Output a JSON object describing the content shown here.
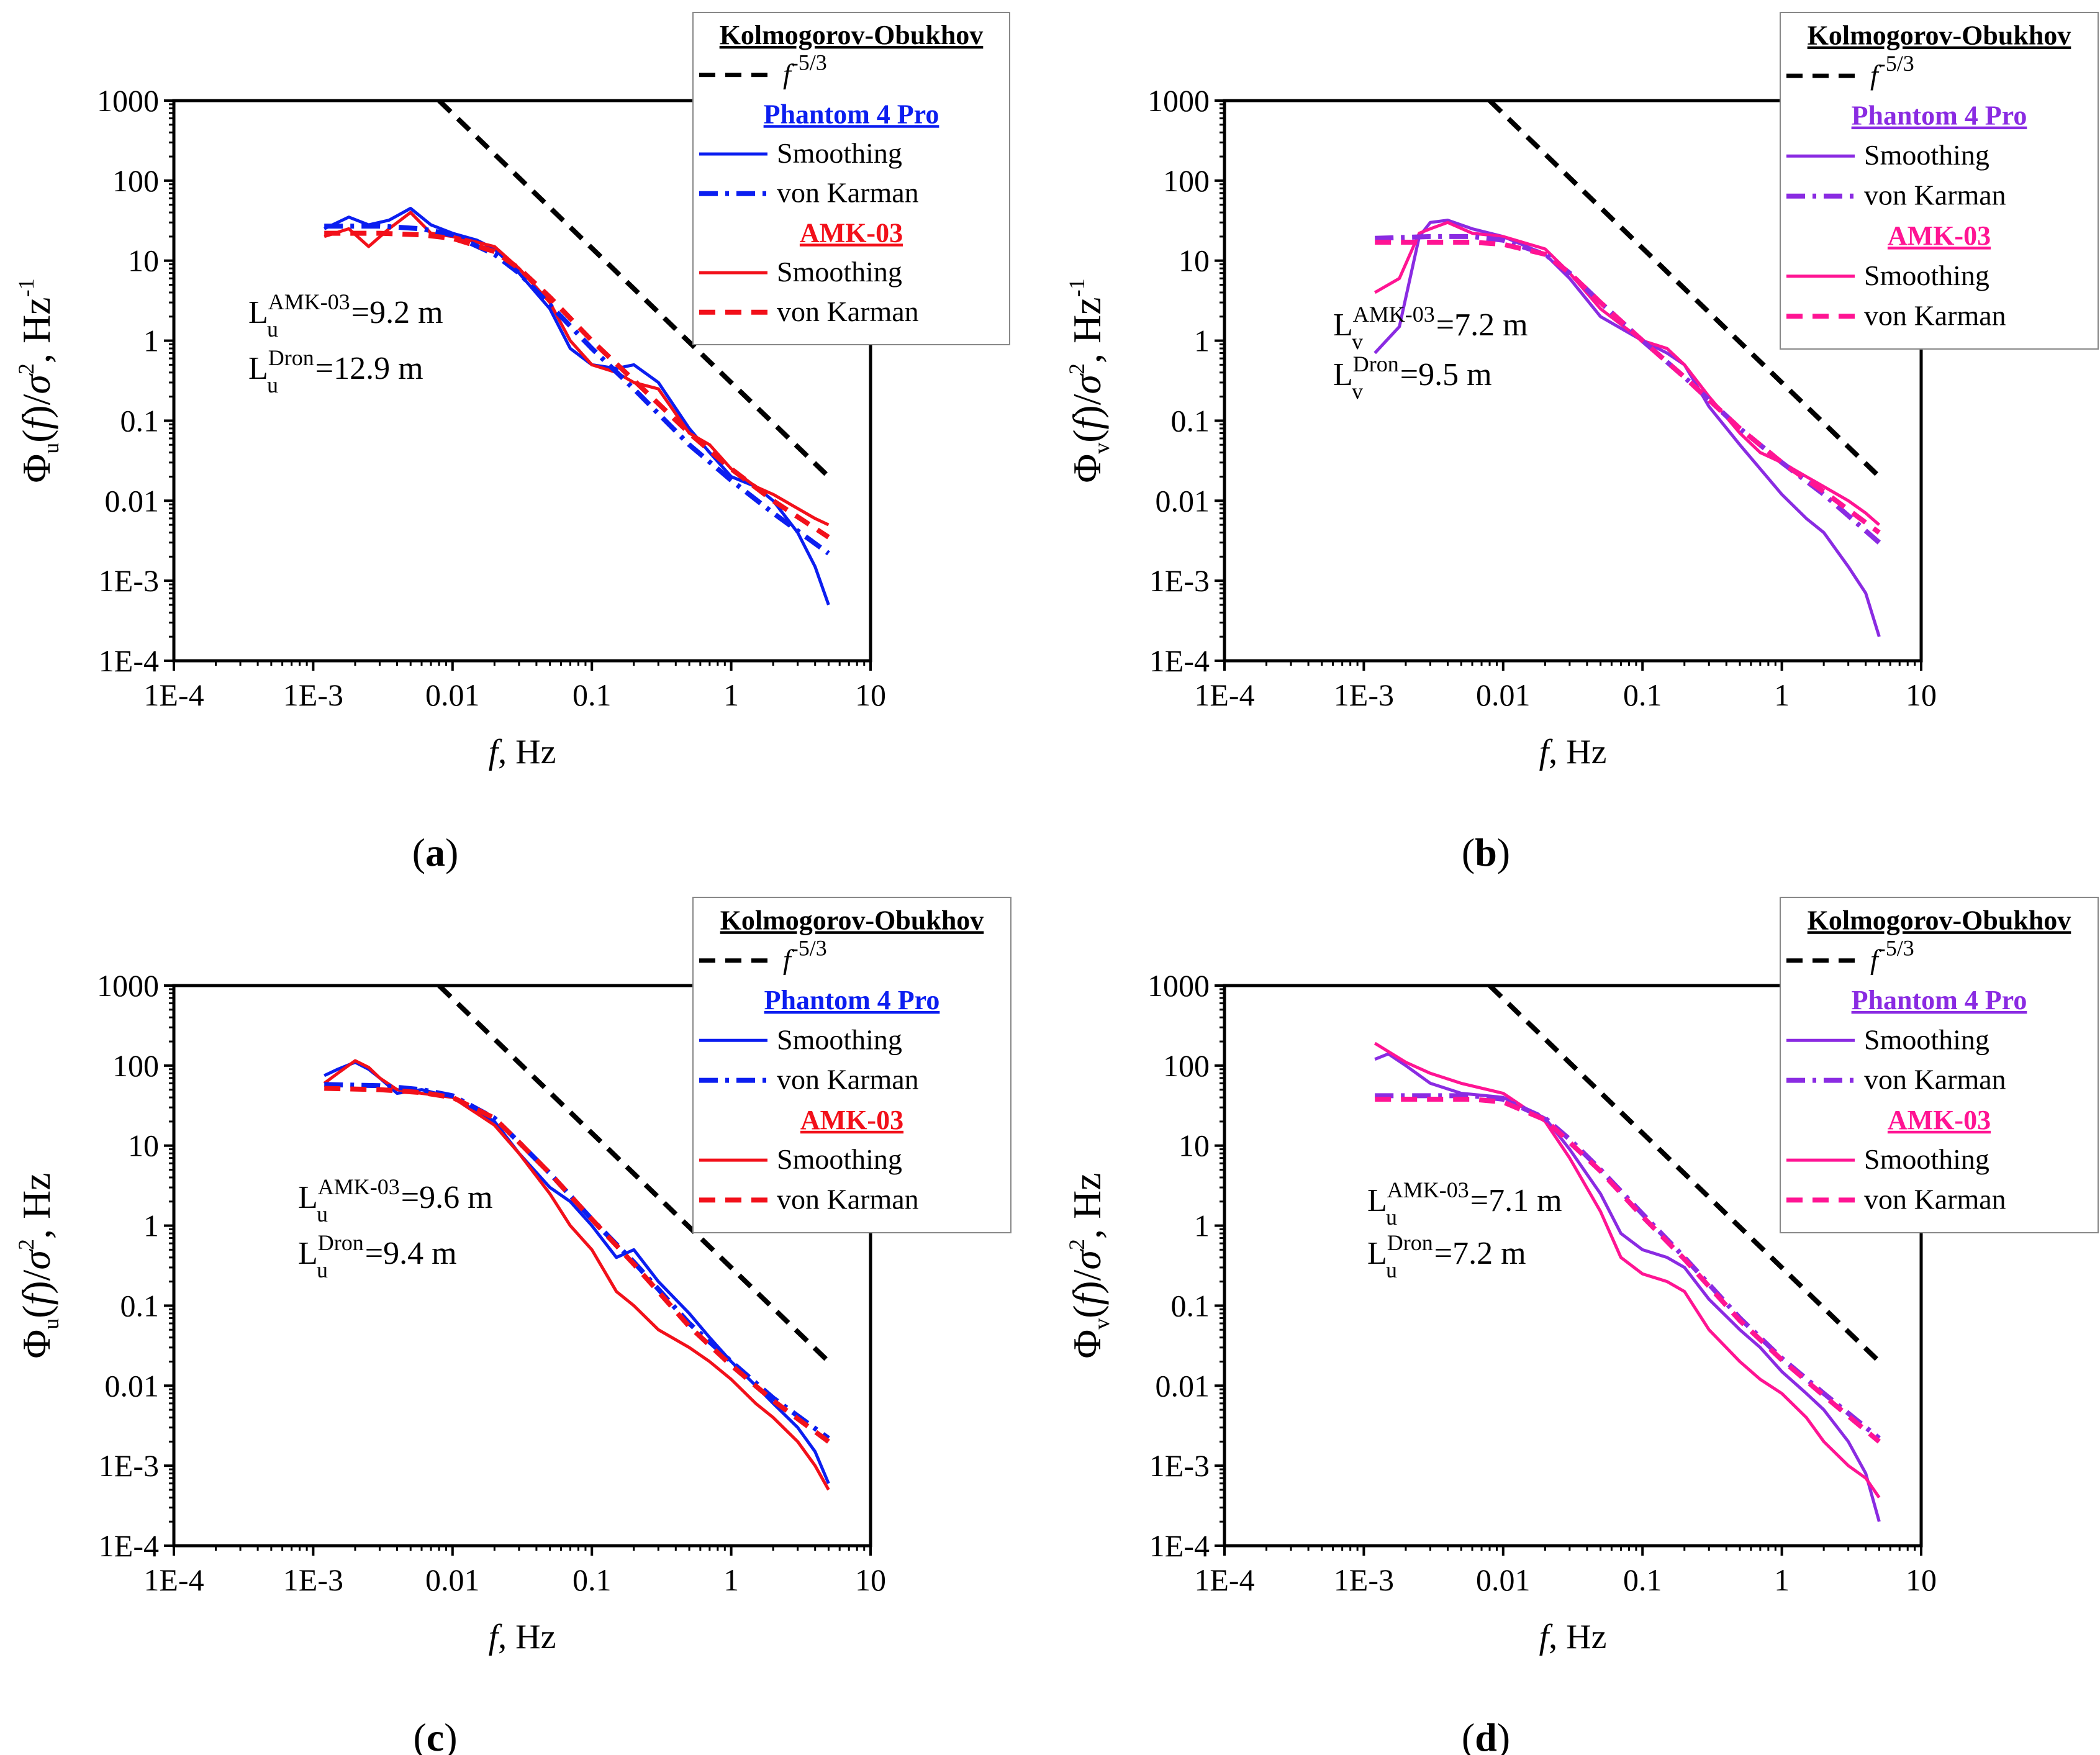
{
  "figure": {
    "x_ticks": [
      "1E-4",
      "1E-3",
      "0.01",
      "0.1",
      "1",
      "10"
    ],
    "y_ticks": [
      "1000",
      "100",
      "10",
      "1",
      "0.1",
      "0.01",
      "1E-3",
      "1E-4"
    ]
  },
  "chart_data": [
    {
      "type": "line",
      "panel_label": "a",
      "scale": "log-log",
      "xlim": [
        0.0001,
        10
      ],
      "ylim": [
        0.0001,
        1000
      ],
      "x_ticks": [
        0.0001,
        0.001,
        0.01,
        0.1,
        1,
        10
      ],
      "y_ticks": [
        1000,
        100,
        10,
        1,
        0.1,
        0.01,
        0.001,
        0.0001
      ],
      "xlabel": "f, Hz",
      "ylabel": {
        "base": "Φ",
        "sub": "u",
        "mid": "(f)/σ",
        "sup": "2",
        "tail": ", Hz",
        "tail_sup": "-1"
      },
      "legend": {
        "group1": "Kolmogorov-Obukhov",
        "slope_label": "f",
        "slope_exponent": "-5/3",
        "group2": "Phantom 4 Pro",
        "group3": "AMK-03",
        "smoothing": "Smoothing",
        "von_karman": "von Karman"
      },
      "colors": {
        "drone": "#0b1ef0",
        "amk": "#f2101a",
        "kolmogorov": "#000000"
      },
      "annotation": {
        "line1": {
          "L": "L",
          "sub": "u",
          "sup": "AMK-03",
          "value": "=9.2 m"
        },
        "line2": {
          "L": "L",
          "sub": "u",
          "sup": "Dron",
          "value": "=12.9 m"
        }
      },
      "series": [
        {
          "name": "Kolmogorov-Obukhov f^-5/3",
          "style": "dash",
          "x": [
            0.008,
            5
          ],
          "y": [
            1000,
            0.02
          ]
        },
        {
          "name": "Phantom 4 Pro Smoothing",
          "style": "solid",
          "x": [
            0.0012,
            0.0018,
            0.0025,
            0.0035,
            0.005,
            0.007,
            0.01,
            0.015,
            0.02,
            0.03,
            0.05,
            0.07,
            0.1,
            0.15,
            0.2,
            0.3,
            0.5,
            0.7,
            1,
            1.5,
            2,
            3,
            4,
            5
          ],
          "y": [
            25,
            35,
            28,
            32,
            45,
            28,
            22,
            18,
            14,
            7,
            2.5,
            0.8,
            0.5,
            0.45,
            0.5,
            0.3,
            0.08,
            0.04,
            0.02,
            0.015,
            0.01,
            0.004,
            0.0015,
            0.0005
          ]
        },
        {
          "name": "Phantom 4 Pro von Karman",
          "style": "dashdot",
          "x": [
            0.0012,
            0.003,
            0.006,
            0.01,
            0.02,
            0.03,
            0.05,
            0.1,
            0.2,
            0.5,
            1,
            2,
            5
          ],
          "y": [
            27,
            27,
            25,
            21,
            12,
            7,
            2.8,
            0.8,
            0.25,
            0.05,
            0.018,
            0.007,
            0.0022
          ]
        },
        {
          "name": "AMK-03 Smoothing",
          "style": "solid",
          "x": [
            0.0012,
            0.0018,
            0.0025,
            0.0035,
            0.005,
            0.007,
            0.01,
            0.015,
            0.02,
            0.03,
            0.05,
            0.07,
            0.1,
            0.15,
            0.2,
            0.3,
            0.5,
            0.7,
            1,
            1.5,
            2,
            3,
            4,
            5
          ],
          "y": [
            20,
            25,
            15,
            25,
            40,
            22,
            20,
            17,
            15,
            8,
            3,
            1,
            0.5,
            0.4,
            0.3,
            0.25,
            0.07,
            0.05,
            0.025,
            0.015,
            0.012,
            0.008,
            0.006,
            0.005
          ]
        },
        {
          "name": "AMK-03 von Karman",
          "style": "dash",
          "x": [
            0.0012,
            0.003,
            0.006,
            0.01,
            0.02,
            0.03,
            0.05,
            0.1,
            0.2,
            0.5,
            1,
            2,
            5
          ],
          "y": [
            22,
            22,
            21,
            19,
            13,
            8,
            3.5,
            1,
            0.32,
            0.07,
            0.025,
            0.01,
            0.0035
          ]
        }
      ]
    },
    {
      "type": "line",
      "panel_label": "b",
      "scale": "log-log",
      "xlim": [
        0.0001,
        10
      ],
      "ylim": [
        0.0001,
        1000
      ],
      "x_ticks": [
        0.0001,
        0.001,
        0.01,
        0.1,
        1,
        10
      ],
      "y_ticks": [
        1000,
        100,
        10,
        1,
        0.1,
        0.01,
        0.001,
        0.0001
      ],
      "xlabel": "f, Hz",
      "ylabel": {
        "base": "Φ",
        "sub": "v",
        "mid": "(f)/σ",
        "sup": "2",
        "tail": ", Hz",
        "tail_sup": "-1"
      },
      "legend": {
        "group1": "Kolmogorov-Obukhov",
        "slope_label": "f",
        "slope_exponent": "-5/3",
        "group2": "Phantom 4 Pro",
        "group3": "AMK-03",
        "smoothing": "Smoothing",
        "von_karman": "von Karman"
      },
      "colors": {
        "drone": "#8a2be2",
        "amk": "#ff1493",
        "kolmogorov": "#000000"
      },
      "annotation": {
        "line1": {
          "L": "L",
          "sub": "v",
          "sup": "AMK-03",
          "value": "=7.2 m"
        },
        "line2": {
          "L": "L",
          "sub": "v",
          "sup": "Dron",
          "value": "=9.5 m"
        }
      },
      "series": [
        {
          "name": "Kolmogorov-Obukhov f^-5/3",
          "style": "dash",
          "x": [
            0.008,
            5
          ],
          "y": [
            1000,
            0.02
          ]
        },
        {
          "name": "Phantom 4 Pro Smoothing",
          "style": "solid",
          "x": [
            0.0012,
            0.0018,
            0.0025,
            0.003,
            0.004,
            0.006,
            0.01,
            0.02,
            0.03,
            0.05,
            0.1,
            0.15,
            0.2,
            0.3,
            0.5,
            0.7,
            1,
            1.5,
            2,
            3,
            4,
            5
          ],
          "y": [
            0.7,
            1.5,
            20,
            30,
            32,
            25,
            20,
            12,
            6,
            2,
            1,
            0.7,
            0.5,
            0.15,
            0.05,
            0.025,
            0.012,
            0.006,
            0.004,
            0.0015,
            0.0007,
            0.0002
          ]
        },
        {
          "name": "Phantom 4 Pro von Karman",
          "style": "dashdot",
          "x": [
            0.0012,
            0.003,
            0.006,
            0.01,
            0.02,
            0.03,
            0.05,
            0.1,
            0.2,
            0.5,
            1,
            2,
            5
          ],
          "y": [
            19,
            20,
            20,
            18,
            12,
            7,
            3,
            1,
            0.35,
            0.08,
            0.03,
            0.012,
            0.003
          ]
        },
        {
          "name": "AMK-03 Smoothing",
          "style": "solid",
          "x": [
            0.0012,
            0.0018,
            0.0025,
            0.003,
            0.004,
            0.006,
            0.01,
            0.02,
            0.03,
            0.05,
            0.1,
            0.15,
            0.2,
            0.3,
            0.5,
            0.7,
            1,
            1.5,
            2,
            3,
            4,
            5
          ],
          "y": [
            4,
            6,
            22,
            25,
            30,
            22,
            20,
            14,
            7,
            2.5,
            1,
            0.8,
            0.5,
            0.2,
            0.07,
            0.04,
            0.03,
            0.02,
            0.015,
            0.01,
            0.007,
            0.005
          ]
        },
        {
          "name": "AMK-03 von Karman",
          "style": "dash",
          "x": [
            0.0012,
            0.003,
            0.006,
            0.01,
            0.02,
            0.03,
            0.05,
            0.1,
            0.2,
            0.5,
            1,
            2,
            5
          ],
          "y": [
            17,
            17,
            17,
            16,
            12,
            7,
            3,
            1,
            0.35,
            0.08,
            0.03,
            0.013,
            0.004
          ]
        }
      ]
    },
    {
      "type": "line",
      "panel_label": "c",
      "scale": "log-log",
      "xlim": [
        0.0001,
        10
      ],
      "ylim": [
        0.0001,
        1000
      ],
      "x_ticks": [
        0.0001,
        0.001,
        0.01,
        0.1,
        1,
        10
      ],
      "y_ticks": [
        1000,
        100,
        10,
        1,
        0.1,
        0.01,
        0.001,
        0.0001
      ],
      "xlabel": "f, Hz",
      "ylabel": {
        "base": "Φ",
        "sub": "u",
        "mid": "(f)/σ",
        "sup": "2",
        "tail": ", Hz",
        "tail_sup": ""
      },
      "legend": {
        "group1": "Kolmogorov-Obukhov",
        "slope_label": "f",
        "slope_exponent": "-5/3",
        "group2": "Phantom 4 Pro",
        "group3": "AMK-03",
        "smoothing": "Smoothing",
        "von_karman": "von Karman"
      },
      "colors": {
        "drone": "#0b1ef0",
        "amk": "#f2101a",
        "kolmogorov": "#000000"
      },
      "annotation": {
        "line1": {
          "L": "L",
          "sub": "u",
          "sup": "AMK-03",
          "value": "=9.6 m"
        },
        "line2": {
          "L": "L",
          "sub": "u",
          "sup": "Dron",
          "value": "=9.4 m"
        }
      },
      "series": [
        {
          "name": "Kolmogorov-Obukhov f^-5/3",
          "style": "dash",
          "x": [
            0.008,
            5
          ],
          "y": [
            1000,
            0.02
          ]
        },
        {
          "name": "Phantom 4 Pro Smoothing",
          "style": "solid",
          "x": [
            0.0012,
            0.0015,
            0.002,
            0.0025,
            0.003,
            0.004,
            0.006,
            0.01,
            0.02,
            0.03,
            0.05,
            0.07,
            0.1,
            0.15,
            0.2,
            0.3,
            0.5,
            0.7,
            1,
            1.5,
            2,
            3,
            4,
            5
          ],
          "y": [
            75,
            90,
            110,
            90,
            70,
            45,
            50,
            40,
            20,
            8,
            3,
            2,
            1,
            0.4,
            0.5,
            0.2,
            0.08,
            0.04,
            0.02,
            0.01,
            0.006,
            0.003,
            0.0015,
            0.0006
          ]
        },
        {
          "name": "Phantom 4 Pro von Karman",
          "style": "dashdot",
          "x": [
            0.0012,
            0.003,
            0.006,
            0.01,
            0.02,
            0.03,
            0.05,
            0.1,
            0.2,
            0.5,
            1,
            2,
            5
          ],
          "y": [
            58,
            56,
            50,
            42,
            22,
            11,
            4.5,
            1.2,
            0.35,
            0.06,
            0.02,
            0.007,
            0.0022
          ]
        },
        {
          "name": "AMK-03 Smoothing",
          "style": "solid",
          "x": [
            0.0012,
            0.0015,
            0.002,
            0.0025,
            0.003,
            0.004,
            0.006,
            0.01,
            0.02,
            0.03,
            0.05,
            0.07,
            0.1,
            0.15,
            0.2,
            0.3,
            0.5,
            0.7,
            1,
            1.5,
            2,
            3,
            4,
            5
          ],
          "y": [
            60,
            80,
            115,
            95,
            70,
            50,
            45,
            40,
            18,
            8,
            2.5,
            1,
            0.5,
            0.15,
            0.1,
            0.05,
            0.03,
            0.02,
            0.012,
            0.006,
            0.004,
            0.002,
            0.001,
            0.0005
          ]
        },
        {
          "name": "AMK-03 von Karman",
          "style": "dash",
          "x": [
            0.0012,
            0.003,
            0.006,
            0.01,
            0.02,
            0.03,
            0.05,
            0.1,
            0.2,
            0.5,
            1,
            2,
            5
          ],
          "y": [
            52,
            50,
            46,
            40,
            22,
            11,
            4.5,
            1.2,
            0.33,
            0.055,
            0.018,
            0.0065,
            0.002
          ]
        }
      ]
    },
    {
      "type": "line",
      "panel_label": "d",
      "scale": "log-log",
      "xlim": [
        0.0001,
        10
      ],
      "ylim": [
        0.0001,
        1000
      ],
      "x_ticks": [
        0.0001,
        0.001,
        0.01,
        0.1,
        1,
        10
      ],
      "y_ticks": [
        1000,
        100,
        10,
        1,
        0.1,
        0.01,
        0.001,
        0.0001
      ],
      "xlabel": "f, Hz",
      "ylabel": {
        "base": "Φ",
        "sub": "v",
        "mid": "(f)/σ",
        "sup": "2",
        "tail": ", Hz",
        "tail_sup": ""
      },
      "legend": {
        "group1": "Kolmogorov-Obukhov",
        "slope_label": "f",
        "slope_exponent": "-5/3",
        "group2": "Phantom 4 Pro",
        "group3": "AMK-03",
        "smoothing": "Smoothing",
        "von_karman": "von Karman"
      },
      "colors": {
        "drone": "#8a2be2",
        "amk": "#ff1493",
        "kolmogorov": "#000000"
      },
      "annotation": {
        "line1": {
          "L": "L",
          "sub": "u",
          "sup": "AMK-03",
          "value": "=7.1 m"
        },
        "line2": {
          "L": "L",
          "sub": "u",
          "sup": "Dron",
          "value": "=7.2 m"
        }
      },
      "series": [
        {
          "name": "Kolmogorov-Obukhov f^-5/3",
          "style": "dash",
          "x": [
            0.008,
            5
          ],
          "y": [
            1000,
            0.02
          ]
        },
        {
          "name": "Phantom 4 Pro Smoothing",
          "style": "solid",
          "x": [
            0.0012,
            0.0015,
            0.002,
            0.003,
            0.005,
            0.01,
            0.02,
            0.03,
            0.05,
            0.07,
            0.1,
            0.15,
            0.2,
            0.3,
            0.5,
            0.7,
            1,
            1.5,
            2,
            3,
            4,
            5
          ],
          "y": [
            120,
            140,
            100,
            60,
            45,
            40,
            22,
            9,
            2.5,
            0.8,
            0.5,
            0.4,
            0.3,
            0.12,
            0.05,
            0.03,
            0.015,
            0.008,
            0.005,
            0.002,
            0.0008,
            0.0002
          ]
        },
        {
          "name": "Phantom 4 Pro von Karman",
          "style": "dashdot",
          "x": [
            0.0012,
            0.003,
            0.006,
            0.01,
            0.02,
            0.03,
            0.05,
            0.1,
            0.2,
            0.5,
            1,
            2,
            5
          ],
          "y": [
            42,
            42,
            42,
            38,
            22,
            12,
            5,
            1.4,
            0.4,
            0.07,
            0.022,
            0.008,
            0.0022
          ]
        },
        {
          "name": "AMK-03 Smoothing",
          "style": "solid",
          "x": [
            0.0012,
            0.0015,
            0.002,
            0.003,
            0.005,
            0.01,
            0.02,
            0.03,
            0.05,
            0.07,
            0.1,
            0.15,
            0.2,
            0.3,
            0.5,
            0.7,
            1,
            1.5,
            2,
            3,
            4,
            5
          ],
          "y": [
            190,
            150,
            110,
            80,
            60,
            45,
            20,
            7,
            1.5,
            0.4,
            0.25,
            0.2,
            0.15,
            0.05,
            0.02,
            0.012,
            0.008,
            0.004,
            0.002,
            0.001,
            0.0007,
            0.0004
          ]
        },
        {
          "name": "AMK-03 von Karman",
          "style": "dash",
          "x": [
            0.0012,
            0.003,
            0.006,
            0.01,
            0.02,
            0.03,
            0.05,
            0.1,
            0.2,
            0.5,
            1,
            2,
            5
          ],
          "y": [
            38,
            38,
            38,
            35,
            21,
            11,
            4.8,
            1.3,
            0.38,
            0.065,
            0.021,
            0.0075,
            0.002
          ]
        }
      ]
    }
  ]
}
